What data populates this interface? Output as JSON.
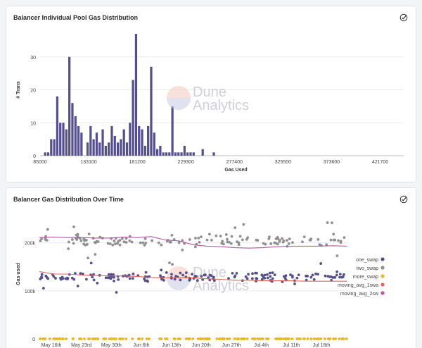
{
  "panel1": {
    "title": "Balancer Individual Pool Gas Distribution",
    "check_icon": "check-circle-icon",
    "chart_data": {
      "type": "bar",
      "title": "Balancer Individual Pool Gas Distribution",
      "xlabel": "Gas Used",
      "ylabel": "# Trans",
      "xlim": [
        85000,
        445000
      ],
      "ylim": [
        0,
        40
      ],
      "y_ticks": [
        0,
        10,
        20,
        30
      ],
      "x_ticks": [
        85000,
        133100,
        181200,
        229300,
        277400,
        325500,
        373600,
        421700
      ],
      "x_tick_labels": [
        "85000",
        "133100",
        "181200",
        "229300",
        "277400",
        "325500",
        "373600",
        "421700"
      ],
      "bar_color": "#55508d",
      "bin_width": 3000,
      "x": [
        90000,
        93000,
        96000,
        99000,
        102000,
        105000,
        108000,
        111000,
        114000,
        117000,
        120000,
        123000,
        126000,
        129000,
        132000,
        135000,
        138000,
        141000,
        144000,
        147000,
        150000,
        153000,
        156000,
        159000,
        162000,
        165000,
        168000,
        171000,
        174000,
        177000,
        180000,
        183000,
        186000,
        189000,
        192000,
        195000,
        198000,
        201000,
        204000,
        207000,
        210000,
        213000,
        216000,
        219000,
        222000,
        225000,
        228000,
        231000,
        234000,
        237000,
        246000,
        257000
      ],
      "values": [
        1,
        1,
        5,
        5,
        18,
        10,
        10,
        8,
        30,
        16,
        12,
        9,
        7,
        0,
        4,
        9,
        5,
        7,
        4,
        8,
        3,
        4,
        9,
        6,
        4,
        5,
        8,
        4,
        10,
        23,
        37,
        9,
        8,
        3,
        9,
        27,
        7,
        2,
        3,
        1,
        1,
        1,
        15,
        1,
        1,
        1,
        3,
        1,
        1,
        1,
        2,
        1
      ]
    }
  },
  "panel2": {
    "title": "Balancer Gas Distribution Over Time",
    "check_icon": "check-circle-icon",
    "chart_data": {
      "type": "scatter",
      "title": "Balancer Gas Distribution Over Time",
      "ylabel": "Gas used",
      "xlabel": "",
      "x_tick_labels": [
        "May 16th",
        "May 23rd",
        "May 30th",
        "Jun 6th",
        "Jun 13th",
        "Jun 20th",
        "Jun 27th",
        "Jul 4th",
        "Jul 11th",
        "Jul 18th"
      ],
      "y_ticks": [
        0,
        100000,
        200000
      ],
      "y_tick_labels": [
        "0",
        "100k",
        "200k"
      ],
      "ylim": [
        0,
        270000
      ],
      "legend_position": "right",
      "series": [
        {
          "name": "one_swap",
          "color": "#55508d",
          "kind": "points",
          "base": 130000,
          "spread": 14000,
          "count": 170
        },
        {
          "name": "two_swap",
          "color": "#909090",
          "kind": "points",
          "base": 205000,
          "spread": 17000,
          "count": 150
        },
        {
          "name": "more_swap",
          "color": "#e6b91e",
          "kind": "points",
          "base": 0,
          "spread": 0,
          "count": 150
        },
        {
          "name": "moving_avg_1swa",
          "color": "#e3645c",
          "kind": "line",
          "values": [
            140000,
            135000,
            135000,
            133000,
            132000,
            131000,
            131000,
            130000,
            128000,
            127000,
            128000,
            127000,
            125000,
            124000,
            122000,
            122000,
            121000,
            121000,
            121000,
            120000,
            120000,
            120000,
            120000
          ]
        },
        {
          "name": "moving_avg_2sw",
          "color": "#b558a6",
          "kind": "line",
          "values": [
            211000,
            212000,
            211000,
            211000,
            210000,
            210000,
            212000,
            211000,
            213000,
            206000,
            204000,
            196000,
            193000,
            192000,
            190000,
            189000,
            190000,
            192000,
            193000,
            193000,
            193000,
            194000,
            193000
          ]
        }
      ]
    }
  },
  "watermark": {
    "line1": "Dune",
    "line2": "Analytics"
  }
}
